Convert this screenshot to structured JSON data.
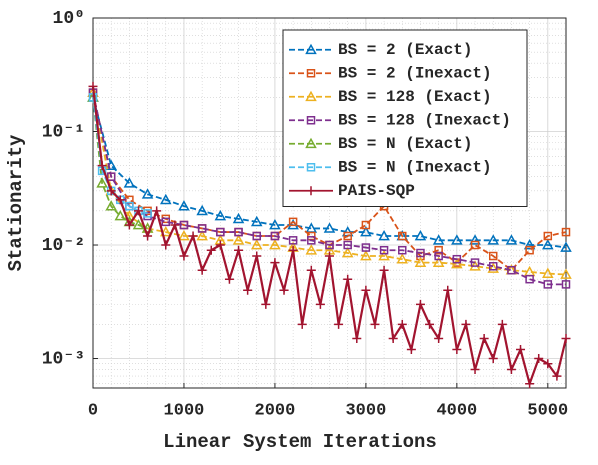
{
  "chart_data": {
    "type": "line",
    "xlabel": "Linear System Iterations",
    "ylabel": "Stationarity",
    "xlim": [
      0,
      5200
    ],
    "ylim": [
      0.00055,
      1
    ],
    "log_y": true,
    "grid": true,
    "minor_grid": true,
    "xticks": [
      0,
      1000,
      2000,
      3000,
      4000,
      5000
    ],
    "yticks": [
      {
        "value": 1,
        "label": "10⁰"
      },
      {
        "value": 0.1,
        "label": "10⁻¹"
      },
      {
        "value": 0.01,
        "label": "10⁻²"
      },
      {
        "value": 0.001,
        "label": "10⁻³"
      }
    ],
    "legend": "upper right",
    "series": [
      {
        "name": "BS = 2 (Exact)",
        "color": "#0072bd",
        "marker": "triangle",
        "line_style": "dashed",
        "x": [
          0,
          200,
          400,
          600,
          800,
          1000,
          1200,
          1400,
          1600,
          1800,
          2000,
          2200,
          2400,
          2600,
          2800,
          3000,
          3200,
          3400,
          3600,
          3800,
          4000,
          4200,
          4400,
          4600,
          4800,
          5000,
          5200
        ],
        "values": [
          0.2,
          0.05,
          0.035,
          0.028,
          0.025,
          0.022,
          0.02,
          0.018,
          0.017,
          0.016,
          0.015,
          0.015,
          0.014,
          0.014,
          0.013,
          0.013,
          0.012,
          0.012,
          0.012,
          0.011,
          0.011,
          0.011,
          0.011,
          0.011,
          0.01,
          0.01,
          0.0095
        ]
      },
      {
        "name": "BS = 2 (Inexact)",
        "color": "#d95319",
        "marker": "square",
        "line_style": "dashed",
        "x": [
          0,
          200,
          400,
          600,
          800,
          1000,
          1200,
          1400,
          1600,
          1800,
          2000,
          2200,
          2400,
          2600,
          2800,
          3000,
          3200,
          3400,
          3600,
          3800,
          4000,
          4200,
          4400,
          4600,
          4800,
          5000,
          5200
        ],
        "values": [
          0.22,
          0.04,
          0.025,
          0.02,
          0.017,
          0.015,
          0.014,
          0.013,
          0.013,
          0.012,
          0.012,
          0.016,
          0.012,
          0.01,
          0.012,
          0.015,
          0.022,
          0.012,
          0.008,
          0.009,
          0.007,
          0.01,
          0.008,
          0.006,
          0.009,
          0.012,
          0.013
        ]
      },
      {
        "name": "BS = 128 (Exact)",
        "color": "#edb120",
        "marker": "triangle",
        "line_style": "dashed",
        "x": [
          0,
          200,
          400,
          600,
          800,
          1000,
          1200,
          1400,
          1600,
          1800,
          2000,
          2200,
          2400,
          2600,
          2800,
          3000,
          3200,
          3400,
          3600,
          3800,
          4000,
          4200,
          4400,
          4600,
          4800,
          5000,
          5200
        ],
        "values": [
          0.22,
          0.03,
          0.018,
          0.014,
          0.013,
          0.012,
          0.012,
          0.011,
          0.011,
          0.01,
          0.01,
          0.0095,
          0.009,
          0.009,
          0.0085,
          0.008,
          0.008,
          0.0075,
          0.007,
          0.007,
          0.0068,
          0.0065,
          0.0062,
          0.006,
          0.0058,
          0.0056,
          0.0055
        ]
      },
      {
        "name": "BS = 128 (Inexact)",
        "color": "#7e2f8e",
        "marker": "square",
        "line_style": "dashed",
        "x": [
          0,
          200,
          400,
          600,
          800,
          1000,
          1200,
          1400,
          1600,
          1800,
          2000,
          2200,
          2400,
          2600,
          2800,
          3000,
          3200,
          3400,
          3600,
          3800,
          4000,
          4200,
          4400,
          4600,
          4800,
          5000,
          5200
        ],
        "values": [
          0.22,
          0.04,
          0.022,
          0.018,
          0.016,
          0.015,
          0.014,
          0.013,
          0.013,
          0.012,
          0.012,
          0.011,
          0.011,
          0.01,
          0.01,
          0.0095,
          0.009,
          0.009,
          0.0085,
          0.008,
          0.0075,
          0.007,
          0.0065,
          0.006,
          0.005,
          0.0045,
          0.0045
        ]
      },
      {
        "name": "BS = N (Exact)",
        "color": "#77ac30",
        "marker": "triangle",
        "line_style": "dashed",
        "x": [
          0,
          100,
          200,
          300,
          400,
          500,
          600
        ],
        "values": [
          0.2,
          0.035,
          0.022,
          0.018,
          0.016,
          0.015,
          0.014
        ]
      },
      {
        "name": "BS = N (Inexact)",
        "color": "#4dbeee",
        "marker": "square",
        "line_style": "dashed",
        "x": [
          0,
          100,
          200,
          300,
          400,
          500,
          600
        ],
        "values": [
          0.2,
          0.045,
          0.03,
          0.025,
          0.022,
          0.02,
          0.019
        ]
      },
      {
        "name": "PAIS-SQP",
        "color": "#a2142f",
        "marker": "plus",
        "line_style": "solid",
        "x": [
          0,
          100,
          200,
          300,
          400,
          500,
          600,
          700,
          800,
          900,
          1000,
          1100,
          1200,
          1300,
          1400,
          1500,
          1600,
          1700,
          1800,
          1900,
          2000,
          2100,
          2200,
          2300,
          2400,
          2500,
          2600,
          2700,
          2800,
          2900,
          3000,
          3100,
          3200,
          3300,
          3400,
          3500,
          3600,
          3700,
          3800,
          3900,
          4000,
          4100,
          4200,
          4300,
          4400,
          4500,
          4600,
          4700,
          4800,
          4900,
          5000,
          5100,
          5200
        ],
        "values": [
          0.25,
          0.05,
          0.03,
          0.025,
          0.015,
          0.02,
          0.012,
          0.02,
          0.01,
          0.015,
          0.008,
          0.012,
          0.006,
          0.009,
          0.01,
          0.005,
          0.009,
          0.004,
          0.008,
          0.003,
          0.007,
          0.004,
          0.009,
          0.002,
          0.006,
          0.003,
          0.008,
          0.002,
          0.005,
          0.0015,
          0.004,
          0.002,
          0.006,
          0.0015,
          0.002,
          0.0012,
          0.003,
          0.002,
          0.0015,
          0.004,
          0.0012,
          0.002,
          0.0008,
          0.0015,
          0.001,
          0.002,
          0.0008,
          0.0012,
          0.0006,
          0.001,
          0.0009,
          0.0007,
          0.0015
        ]
      }
    ]
  }
}
